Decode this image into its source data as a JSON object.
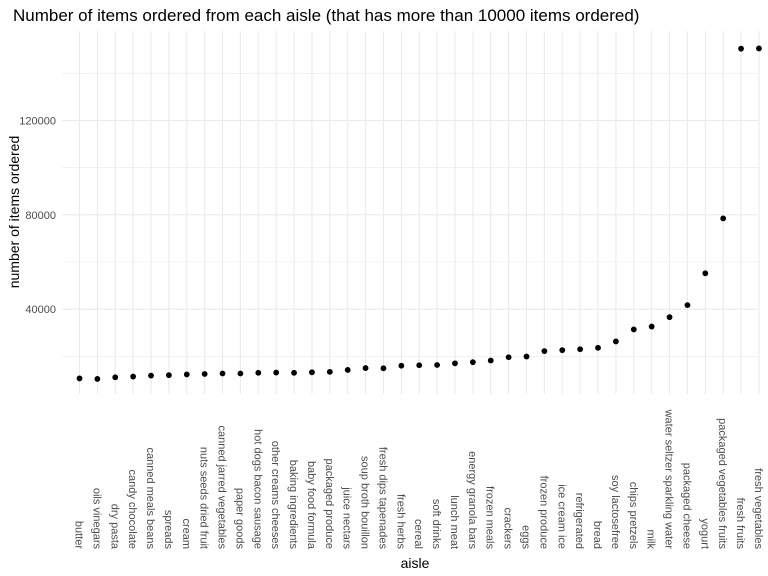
{
  "chart_data": {
    "type": "scatter",
    "title": "Number of items ordered from each aisle (that has more than 10000 items ordered)",
    "xlabel": "aisle",
    "ylabel": "number of items ordered",
    "y_ticks": [
      40000,
      80000,
      120000
    ],
    "y_tick_labels": [
      "40000",
      "80000",
      "120000"
    ],
    "ylim": [
      4000,
      158000
    ],
    "grid": true,
    "point_color": "#000000",
    "grid_color": "#ebebeb",
    "categories": [
      "butter",
      "oils vinegars",
      "dry pasta",
      "candy chocolate",
      "canned meals beans",
      "spreads",
      "cream",
      "nuts seeds dried fruit",
      "canned jarred vegetables",
      "paper goods",
      "hot dogs bacon sausage",
      "other creams cheeses",
      "baking ingredients",
      "baby food formula",
      "packaged produce",
      "juice nectars",
      "soup broth bouillon",
      "fresh dips tapenades",
      "fresh herbs",
      "cereal",
      "soft drinks",
      "lunch meat",
      "energy granola bars",
      "frozen meals",
      "crackers",
      "eggs",
      "frozen produce",
      "ice cream ice",
      "refrigerated",
      "bread",
      "soy lactosefree",
      "chips pretzels",
      "milk",
      "water seltzer sparkling water",
      "packaged cheese",
      "yogurt",
      "packaged vegetables fruits",
      "fresh fruits",
      "fresh vegetables"
    ],
    "values": [
      10600,
      10400,
      11100,
      11400,
      11800,
      12000,
      12300,
      12500,
      12700,
      12700,
      13000,
      13100,
      13000,
      13200,
      13400,
      14200,
      15000,
      14900,
      16000,
      16200,
      16300,
      17000,
      17500,
      18200,
      19600,
      19900,
      22200,
      22600,
      23000,
      23600,
      26300,
      31400,
      32600,
      36600,
      41700,
      55200,
      78500,
      150500,
      150600
    ]
  }
}
